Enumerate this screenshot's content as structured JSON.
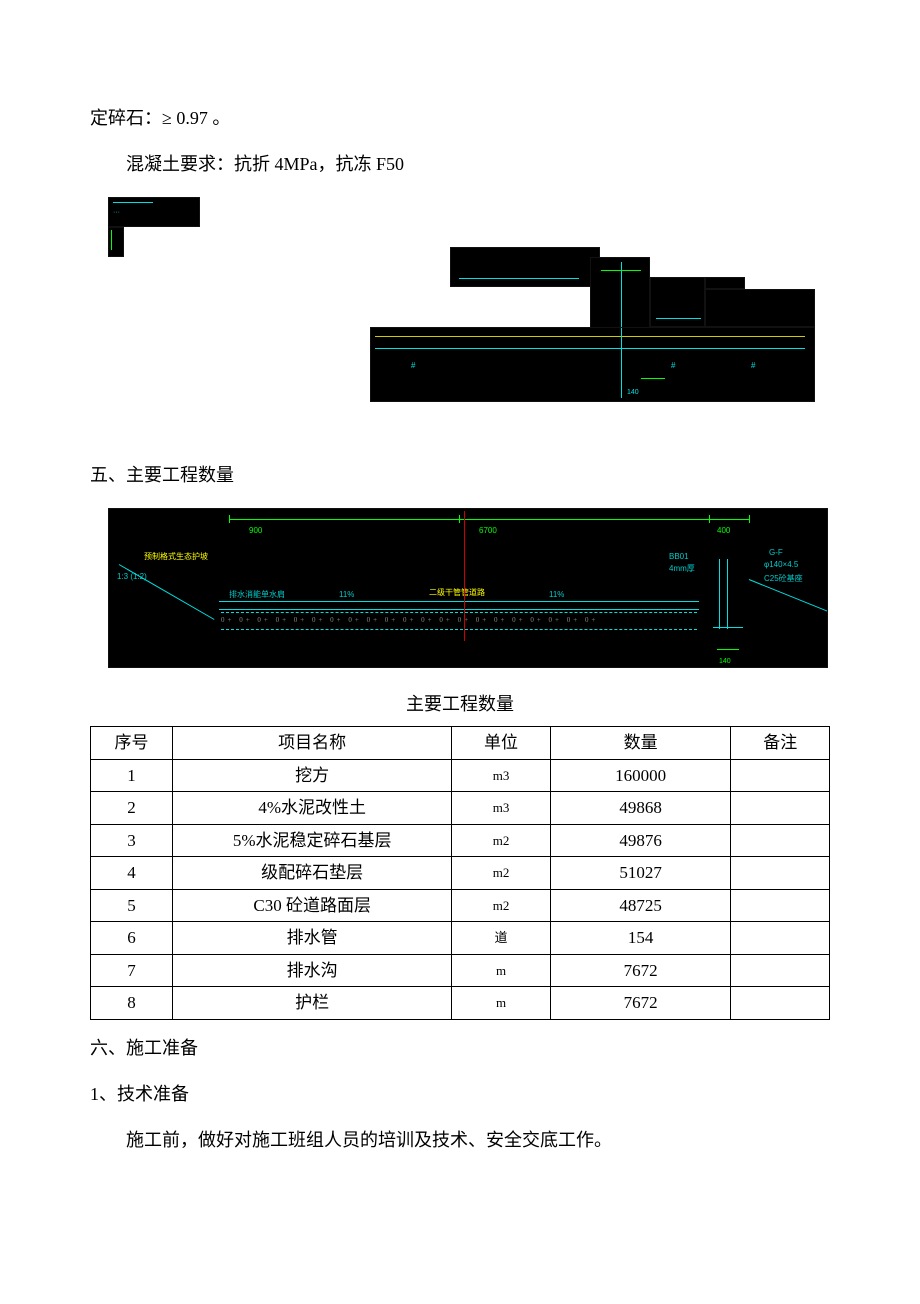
{
  "intro": {
    "line1": "定碎石：≥ 0.97 。",
    "line2": "混凝土要求：抗折 4MPa，抗冻 F50"
  },
  "cad_labels": {
    "d1_hint": "—",
    "d2_dim900": "900",
    "d2_dim6700": "6700",
    "d2_dim400": "400",
    "d2_road": "二级干管管道路",
    "d2_bb01": "BB01",
    "d2_4mm": "4mm厚",
    "d2_gf": "G-F",
    "d2_pipe": "φ140×4.5",
    "d2_c25": "C25砼基座",
    "d2_grid": "预制格式生态护坡",
    "d2_pct1": "11%",
    "d2_pct2": "11%",
    "d2_drain": "排水消能单水肩",
    "d2_small140": "140"
  },
  "section5_heading": "五、主要工程数量",
  "table_title": "主要工程数量",
  "table": {
    "columns": {
      "idx": "序号",
      "name": "项目名称",
      "unit": "单位",
      "qty": "数量",
      "note": "备注"
    },
    "rows": [
      {
        "idx": "1",
        "name": "挖方",
        "unit": "m3",
        "qty": "160000",
        "note": ""
      },
      {
        "idx": "2",
        "name": "4%水泥改性土",
        "unit": "m3",
        "qty": "49868",
        "note": ""
      },
      {
        "idx": "3",
        "name": "5%水泥稳定碎石基层",
        "unit": "m2",
        "qty": "49876",
        "note": ""
      },
      {
        "idx": "4",
        "name": "级配碎石垫层",
        "unit": "m2",
        "qty": "51027",
        "note": ""
      },
      {
        "idx": "5",
        "name": "C30 砼道路面层",
        "unit": "m2",
        "qty": "48725",
        "note": ""
      },
      {
        "idx": "6",
        "name": "排水管",
        "unit": "道",
        "qty": "154",
        "note": ""
      },
      {
        "idx": "7",
        "name": "排水沟",
        "unit": "m",
        "qty": "7672",
        "note": ""
      },
      {
        "idx": "8",
        "name": "护栏",
        "unit": "m",
        "qty": "7672",
        "note": ""
      }
    ]
  },
  "section6_heading": "六、施工准备",
  "section6_sub1": "1、技术准备",
  "section6_body": "施工前，做好对施工班组人员的培训及技术、安全交底工作。"
}
